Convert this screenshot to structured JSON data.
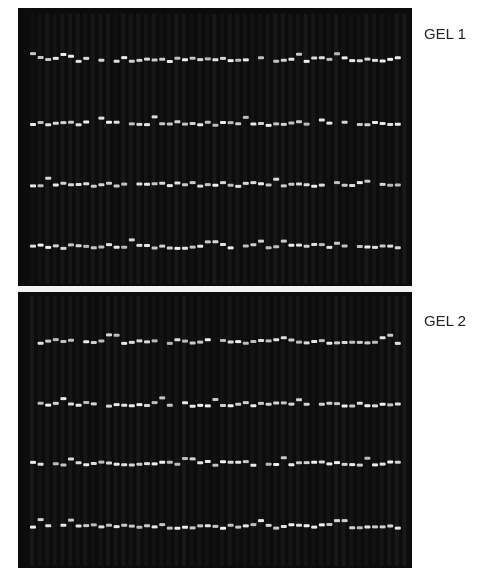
{
  "gels": [
    {
      "label": "GEL 1"
    },
    {
      "label": "GEL 2"
    }
  ]
}
